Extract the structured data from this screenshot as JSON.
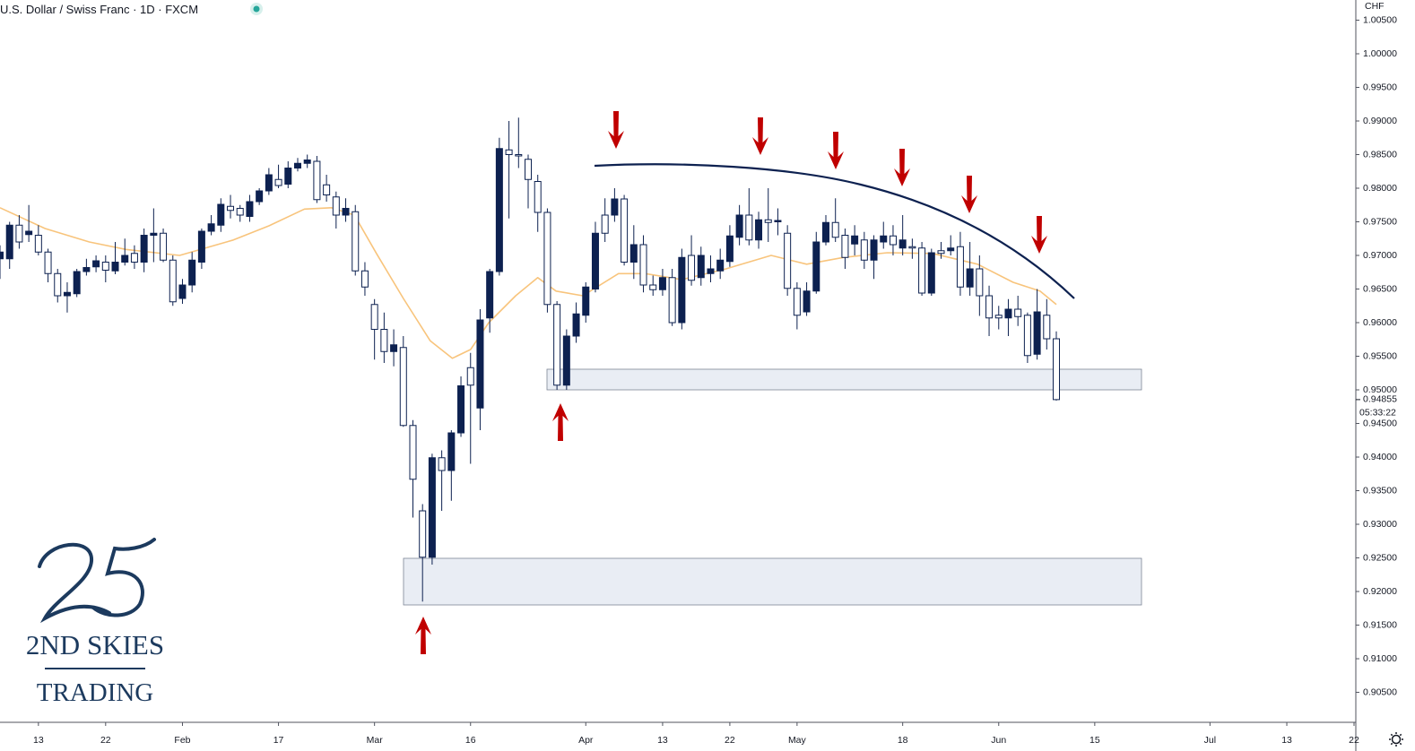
{
  "chart_data": {
    "type": "candlestick",
    "title": "U.S. Dollar / Swiss Franc · 1D · FXCM",
    "y_axis_label": "CHF",
    "last_price": 0.94855,
    "countdown": "05:33:22",
    "logo_lines": [
      "2ND SKIES",
      "TRADING"
    ],
    "up_color": "#0d2150",
    "down_color": "#ffffff",
    "xlim": [
      0,
      141
    ],
    "ylim": [
      0.90067,
      1.008
    ],
    "xticks": [
      {
        "value": 4,
        "label": "13"
      },
      {
        "value": 11,
        "label": "22"
      },
      {
        "value": 19,
        "label": "Feb"
      },
      {
        "value": 29,
        "label": "17"
      },
      {
        "value": 39,
        "label": "Mar"
      },
      {
        "value": 49,
        "label": "16"
      },
      {
        "value": 61,
        "label": "Apr"
      },
      {
        "value": 69,
        "label": "13"
      },
      {
        "value": 76,
        "label": "22"
      },
      {
        "value": 83,
        "label": "May"
      },
      {
        "value": 94,
        "label": "18"
      },
      {
        "value": 104,
        "label": "Jun"
      },
      {
        "value": 114,
        "label": "15"
      },
      {
        "value": 126,
        "label": "Jul"
      },
      {
        "value": 134,
        "label": "13"
      },
      {
        "value": 141,
        "label": "22"
      }
    ],
    "yticks": [
      {
        "value": 0.905,
        "label": "0.90500"
      },
      {
        "value": 0.91,
        "label": "0.91000"
      },
      {
        "value": 0.915,
        "label": "0.91500"
      },
      {
        "value": 0.92,
        "label": "0.92000"
      },
      {
        "value": 0.925,
        "label": "0.92500"
      },
      {
        "value": 0.93,
        "label": "0.93000"
      },
      {
        "value": 0.935,
        "label": "0.93500"
      },
      {
        "value": 0.94,
        "label": "0.94000"
      },
      {
        "value": 0.945,
        "label": "0.94500"
      },
      {
        "value": 0.95,
        "label": "0.95000"
      },
      {
        "value": 0.955,
        "label": "0.95500"
      },
      {
        "value": 0.96,
        "label": "0.96000"
      },
      {
        "value": 0.965,
        "label": "0.96500"
      },
      {
        "value": 0.97,
        "label": "0.97000"
      },
      {
        "value": 0.975,
        "label": "0.97500"
      },
      {
        "value": 0.98,
        "label": "0.98000"
      },
      {
        "value": 0.985,
        "label": "0.98500"
      },
      {
        "value": 0.99,
        "label": "0.99000"
      },
      {
        "value": 0.995,
        "label": "0.99500"
      },
      {
        "value": 1.0,
        "label": "1.00000"
      },
      {
        "value": 1.005,
        "label": "1.00500"
      }
    ],
    "x": [
      0,
      1,
      2,
      3,
      4,
      5,
      6,
      7,
      8,
      9,
      10,
      11,
      12,
      13,
      14,
      15,
      16,
      17,
      18,
      19,
      20,
      21,
      22,
      23,
      24,
      25,
      26,
      27,
      28,
      29,
      30,
      31,
      32,
      33,
      34,
      35,
      36,
      37,
      38,
      39,
      40,
      41,
      42,
      43,
      44,
      45,
      46,
      47,
      48,
      49,
      50,
      51,
      52,
      53,
      54,
      55,
      56,
      57,
      58,
      59,
      60,
      61,
      62,
      63,
      64,
      65,
      66,
      67,
      68,
      69,
      70,
      71,
      72,
      73,
      74,
      75,
      76,
      77,
      78,
      79,
      80,
      81,
      82,
      83,
      84,
      85,
      86,
      87,
      88,
      89,
      90,
      91,
      92,
      93,
      94,
      95,
      96,
      97,
      98,
      99,
      100,
      101,
      102,
      103,
      104,
      105,
      106,
      107,
      108,
      109,
      110
    ],
    "open": [
      0.9695,
      0.9695,
      0.9745,
      0.9731,
      0.973,
      0.9705,
      0.9673,
      0.964,
      0.9643,
      0.9676,
      0.9683,
      0.969,
      0.9677,
      0.969,
      0.9703,
      0.969,
      0.973,
      0.9733,
      0.9693,
      0.9636,
      0.9656,
      0.969,
      0.9736,
      0.9745,
      0.9773,
      0.977,
      0.9758,
      0.978,
      0.9796,
      0.9813,
      0.9806,
      0.983,
      0.9837,
      0.984,
      0.9805,
      0.9787,
      0.976,
      0.9765,
      0.9677,
      0.9627,
      0.959,
      0.9557,
      0.9563,
      0.9447,
      0.932,
      0.9251,
      0.9399,
      0.938,
      0.9436,
      0.9533,
      0.9473,
      0.9607,
      0.9676,
      0.9857,
      0.985,
      0.9843,
      0.981,
      0.9764,
      0.9627,
      0.9507,
      0.958,
      0.9611,
      0.965,
      0.976,
      0.976,
      0.9784,
      0.969,
      0.9716,
      0.9656,
      0.9649,
      0.9667,
      0.96,
      0.97,
      0.9667,
      0.9673,
      0.9677,
      0.9691,
      0.9727,
      0.976,
      0.9723,
      0.9753,
      0.975,
      0.9733,
      0.9651,
      0.9616,
      0.9647,
      0.972,
      0.9749,
      0.973,
      0.9717,
      0.9723,
      0.9693,
      0.972,
      0.9729,
      0.9711,
      0.9713,
      0.9711,
      0.9644,
      0.9707,
      0.9707,
      0.9713,
      0.9653,
      0.968,
      0.964,
      0.9611,
      0.9607,
      0.962,
      0.9611,
      0.9553,
      0.9611,
      0.9576
    ],
    "high": [
      0.9715,
      0.975,
      0.976,
      0.9775,
      0.9745,
      0.971,
      0.968,
      0.966,
      0.968,
      0.9695,
      0.97,
      0.97,
      0.972,
      0.9725,
      0.9715,
      0.974,
      0.977,
      0.974,
      0.97,
      0.9665,
      0.9705,
      0.974,
      0.976,
      0.9785,
      0.979,
      0.9775,
      0.979,
      0.98,
      0.983,
      0.9835,
      0.984,
      0.9845,
      0.985,
      0.9848,
      0.982,
      0.9795,
      0.9785,
      0.9775,
      0.969,
      0.9635,
      0.9615,
      0.959,
      0.958,
      0.9455,
      0.933,
      0.9405,
      0.941,
      0.944,
      0.952,
      0.9555,
      0.962,
      0.968,
      0.9875,
      0.99,
      0.9905,
      0.985,
      0.982,
      0.977,
      0.9632,
      0.959,
      0.963,
      0.966,
      0.975,
      0.9785,
      0.98,
      0.979,
      0.9745,
      0.973,
      0.967,
      0.968,
      0.968,
      0.971,
      0.973,
      0.9713,
      0.97,
      0.971,
      0.9745,
      0.9775,
      0.98,
      0.9765,
      0.98,
      0.977,
      0.9745,
      0.966,
      0.966,
      0.9735,
      0.976,
      0.9785,
      0.974,
      0.9745,
      0.9735,
      0.973,
      0.975,
      0.9745,
      0.976,
      0.9725,
      0.972,
      0.971,
      0.972,
      0.973,
      0.9735,
      0.972,
      0.97,
      0.9655,
      0.9625,
      0.9635,
      0.964,
      0.9615,
      0.965,
      0.9635,
      0.9587
    ],
    "low": [
      0.9665,
      0.968,
      0.971,
      0.972,
      0.97,
      0.966,
      0.963,
      0.9615,
      0.9638,
      0.967,
      0.9675,
      0.966,
      0.9672,
      0.9685,
      0.968,
      0.9675,
      0.969,
      0.969,
      0.9625,
      0.9628,
      0.9645,
      0.968,
      0.973,
      0.9735,
      0.9755,
      0.975,
      0.975,
      0.9775,
      0.979,
      0.98,
      0.98,
      0.9825,
      0.983,
      0.9778,
      0.978,
      0.974,
      0.975,
      0.967,
      0.964,
      0.9545,
      0.954,
      0.9535,
      0.9445,
      0.931,
      0.9185,
      0.924,
      0.932,
      0.9335,
      0.943,
      0.939,
      0.944,
      0.9585,
      0.967,
      0.9755,
      0.983,
      0.977,
      0.9735,
      0.9615,
      0.95,
      0.95,
      0.957,
      0.96,
      0.9645,
      0.972,
      0.975,
      0.9685,
      0.9665,
      0.9645,
      0.964,
      0.964,
      0.9595,
      0.959,
      0.9655,
      0.9655,
      0.966,
      0.9665,
      0.9683,
      0.9715,
      0.9715,
      0.971,
      0.972,
      0.973,
      0.964,
      0.959,
      0.961,
      0.9643,
      0.9715,
      0.972,
      0.968,
      0.97,
      0.968,
      0.9665,
      0.971,
      0.97,
      0.97,
      0.9695,
      0.964,
      0.964,
      0.9695,
      0.97,
      0.964,
      0.964,
      0.961,
      0.958,
      0.959,
      0.958,
      0.9595,
      0.954,
      0.9545,
      0.956,
      0.9484
    ],
    "close": [
      0.9705,
      0.9745,
      0.972,
      0.9736,
      0.9705,
      0.9673,
      0.964,
      0.9645,
      0.9676,
      0.9682,
      0.9692,
      0.9678,
      0.969,
      0.97,
      0.969,
      0.973,
      0.9733,
      0.9693,
      0.9631,
      0.9656,
      0.9693,
      0.9736,
      0.9747,
      0.9776,
      0.9767,
      0.976,
      0.978,
      0.9796,
      0.982,
      0.9804,
      0.983,
      0.9837,
      0.9842,
      0.9783,
      0.979,
      0.976,
      0.977,
      0.9677,
      0.9653,
      0.959,
      0.9557,
      0.9567,
      0.9447,
      0.9367,
      0.9251,
      0.9399,
      0.938,
      0.9436,
      0.9506,
      0.9507,
      0.9604,
      0.9676,
      0.9859,
      0.985,
      0.9848,
      0.9813,
      0.9764,
      0.9627,
      0.9507,
      0.958,
      0.9613,
      0.9653,
      0.9733,
      0.9733,
      0.9784,
      0.969,
      0.9716,
      0.9656,
      0.9649,
      0.9667,
      0.96,
      0.9697,
      0.9663,
      0.97,
      0.968,
      0.9693,
      0.9729,
      0.976,
      0.9723,
      0.9753,
      0.9749,
      0.9752,
      0.9651,
      0.9611,
      0.9647,
      0.972,
      0.9749,
      0.9727,
      0.9697,
      0.9729,
      0.9693,
      0.9723,
      0.9729,
      0.9716,
      0.9723,
      0.9711,
      0.9644,
      0.9704,
      0.9703,
      0.9711,
      0.9653,
      0.968,
      0.964,
      0.9607,
      0.9607,
      0.962,
      0.9609,
      0.9551,
      0.9616,
      0.9576,
      0.94855
    ],
    "moving_average": {
      "color": "#f8c47c",
      "x": [
        0,
        4.7,
        9.3,
        13.1,
        18.7,
        24.3,
        28,
        31.7,
        34.5,
        36.9,
        39.2,
        42,
        44.8,
        47.1,
        49,
        50.9,
        53.7,
        56,
        57.9,
        60.7,
        64.4,
        67.2,
        71,
        75.6,
        80.3,
        84,
        87.8,
        92.4,
        97.1,
        101.8,
        105.5,
        108.3,
        110
      ],
      "values": [
        0.9771,
        0.974,
        0.972,
        0.9709,
        0.97,
        0.9723,
        0.9744,
        0.9769,
        0.9771,
        0.976,
        0.9703,
        0.9636,
        0.9573,
        0.9547,
        0.956,
        0.96,
        0.964,
        0.9667,
        0.9647,
        0.964,
        0.9673,
        0.9673,
        0.9664,
        0.968,
        0.97,
        0.9687,
        0.9697,
        0.9704,
        0.9703,
        0.9687,
        0.966,
        0.9647,
        0.9627
      ]
    }
  }
}
